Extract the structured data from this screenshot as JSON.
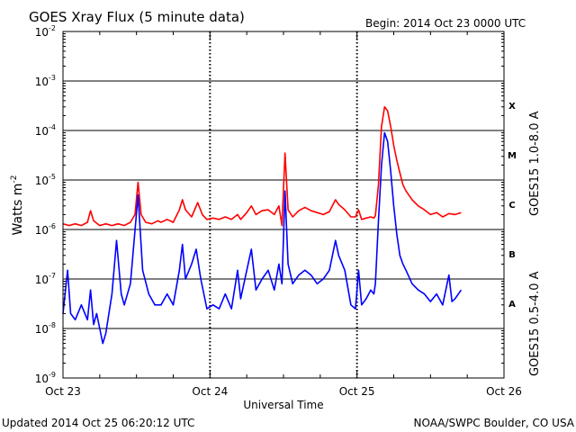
{
  "chart_data": {
    "type": "line",
    "title": "GOES Xray Flux (5 minute data)",
    "begin_label": "Begin:  2014 Oct 23 0000 UTC",
    "ylabel": "Watts m",
    "ylabel_exponent": "-2",
    "xlabel": "Universal Time",
    "yscale": "log",
    "ylim": [
      1e-09,
      0.01
    ],
    "y_ticks": [
      {
        "value": 0.01,
        "base": "10",
        "exp": "-2"
      },
      {
        "value": 0.001,
        "base": "10",
        "exp": "-3"
      },
      {
        "value": 0.0001,
        "base": "10",
        "exp": "-4"
      },
      {
        "value": 1e-05,
        "base": "10",
        "exp": "-5"
      },
      {
        "value": 1e-06,
        "base": "10",
        "exp": "-6"
      },
      {
        "value": 1e-07,
        "base": "10",
        "exp": "-7"
      },
      {
        "value": 1e-08,
        "base": "10",
        "exp": "-8"
      },
      {
        "value": 1e-09,
        "base": "10",
        "exp": "-9"
      }
    ],
    "xlim": [
      "2014-10-23 00:00",
      "2014-10-26 00:00"
    ],
    "x_ticks": [
      {
        "value": "2014-10-23 00:00",
        "label": "Oct 23"
      },
      {
        "value": "2014-10-24 00:00",
        "label": "Oct 24"
      },
      {
        "value": "2014-10-25 00:00",
        "label": "Oct 25"
      },
      {
        "value": "2014-10-26 00:00",
        "label": "Oct 26"
      }
    ],
    "grid": true,
    "flare_classes": [
      {
        "label": "X",
        "value": 0.00032
      },
      {
        "label": "M",
        "value": 3.2e-05
      },
      {
        "label": "C",
        "value": 3.2e-06
      },
      {
        "label": "B",
        "value": 3.2e-07
      },
      {
        "label": "A",
        "value": 3.2e-08
      }
    ],
    "series": [
      {
        "name": "GOES15 1.0-8.0 A",
        "color": "#ff0000",
        "points": [
          [
            "2014-10-23 00:00",
            1.3e-06
          ],
          [
            "2014-10-23 01:00",
            1.2e-06
          ],
          [
            "2014-10-23 02:00",
            1.3e-06
          ],
          [
            "2014-10-23 03:00",
            1.2e-06
          ],
          [
            "2014-10-23 04:00",
            1.4e-06
          ],
          [
            "2014-10-23 04:30",
            2.4e-06
          ],
          [
            "2014-10-23 05:00",
            1.5e-06
          ],
          [
            "2014-10-23 06:00",
            1.2e-06
          ],
          [
            "2014-10-23 07:00",
            1.3e-06
          ],
          [
            "2014-10-23 08:00",
            1.2e-06
          ],
          [
            "2014-10-23 09:00",
            1.3e-06
          ],
          [
            "2014-10-23 10:00",
            1.2e-06
          ],
          [
            "2014-10-23 11:00",
            1.4e-06
          ],
          [
            "2014-10-23 11:45",
            2e-06
          ],
          [
            "2014-10-23 12:15",
            9e-06
          ],
          [
            "2014-10-23 12:45",
            2e-06
          ],
          [
            "2014-10-23 13:30",
            1.4e-06
          ],
          [
            "2014-10-23 14:30",
            1.3e-06
          ],
          [
            "2014-10-23 15:30",
            1.5e-06
          ],
          [
            "2014-10-23 16:00",
            1.4e-06
          ],
          [
            "2014-10-23 17:00",
            1.6e-06
          ],
          [
            "2014-10-23 18:00",
            1.4e-06
          ],
          [
            "2014-10-23 19:00",
            2.5e-06
          ],
          [
            "2014-10-23 19:30",
            4e-06
          ],
          [
            "2014-10-23 20:00",
            2.5e-06
          ],
          [
            "2014-10-23 21:00",
            1.8e-06
          ],
          [
            "2014-10-23 22:00",
            3.5e-06
          ],
          [
            "2014-10-23 22:45",
            2e-06
          ],
          [
            "2014-10-23 23:30",
            1.6e-06
          ],
          [
            "2014-10-24 00:30",
            1.7e-06
          ],
          [
            "2014-10-24 01:30",
            1.6e-06
          ],
          [
            "2014-10-24 02:30",
            1.8e-06
          ],
          [
            "2014-10-24 03:30",
            1.6e-06
          ],
          [
            "2014-10-24 04:30",
            2e-06
          ],
          [
            "2014-10-24 05:00",
            1.6e-06
          ],
          [
            "2014-10-24 06:00",
            2.2e-06
          ],
          [
            "2014-10-24 06:45",
            3e-06
          ],
          [
            "2014-10-24 07:30",
            2e-06
          ],
          [
            "2014-10-24 08:30",
            2.4e-06
          ],
          [
            "2014-10-24 09:30",
            2.5e-06
          ],
          [
            "2014-10-24 10:30",
            2e-06
          ],
          [
            "2014-10-24 11:15",
            3e-06
          ],
          [
            "2014-10-24 11:45",
            1.2e-06
          ],
          [
            "2014-10-24 12:15",
            3.5e-05
          ],
          [
            "2014-10-24 12:45",
            2.5e-06
          ],
          [
            "2014-10-24 13:30",
            1.8e-06
          ],
          [
            "2014-10-24 14:30",
            2.4e-06
          ],
          [
            "2014-10-24 15:30",
            2.8e-06
          ],
          [
            "2014-10-24 16:30",
            2.4e-06
          ],
          [
            "2014-10-24 17:30",
            2.2e-06
          ],
          [
            "2014-10-24 18:30",
            2e-06
          ],
          [
            "2014-10-24 19:30",
            2.3e-06
          ],
          [
            "2014-10-24 20:30",
            4e-06
          ],
          [
            "2014-10-24 21:00",
            3.2e-06
          ],
          [
            "2014-10-24 22:00",
            2.5e-06
          ],
          [
            "2014-10-24 23:00",
            1.8e-06
          ],
          [
            "2014-10-24 23:45",
            1.8e-06
          ],
          [
            "2014-10-25 00:15",
            2.5e-06
          ],
          [
            "2014-10-25 00:45",
            1.6e-06
          ],
          [
            "2014-10-25 01:30",
            1.7e-06
          ],
          [
            "2014-10-25 02:15",
            1.8e-06
          ],
          [
            "2014-10-25 02:45",
            1.7e-06
          ],
          [
            "2014-10-25 03:00",
            1.9e-06
          ],
          [
            "2014-10-25 03:30",
            8e-06
          ],
          [
            "2014-10-25 04:00",
            0.00012
          ],
          [
            "2014-10-25 04:30",
            0.0003
          ],
          [
            "2014-10-25 05:00",
            0.00025
          ],
          [
            "2014-10-25 05:30",
            0.00012
          ],
          [
            "2014-10-25 06:00",
            5e-05
          ],
          [
            "2014-10-25 06:30",
            2.5e-05
          ],
          [
            "2014-10-25 07:00",
            1.4e-05
          ],
          [
            "2014-10-25 07:30",
            8e-06
          ],
          [
            "2014-10-25 08:00",
            6e-06
          ],
          [
            "2014-10-25 09:00",
            4e-06
          ],
          [
            "2014-10-25 10:00",
            3e-06
          ],
          [
            "2014-10-25 11:00",
            2.5e-06
          ],
          [
            "2014-10-25 12:00",
            2e-06
          ],
          [
            "2014-10-25 13:00",
            2.2e-06
          ],
          [
            "2014-10-25 14:00",
            1.8e-06
          ],
          [
            "2014-10-25 15:00",
            2.1e-06
          ],
          [
            "2014-10-25 16:00",
            2e-06
          ],
          [
            "2014-10-25 17:00",
            2.2e-06
          ]
        ]
      },
      {
        "name": "GOES15 0.5-4.0 A",
        "color": "#0000ff",
        "points": [
          [
            "2014-10-23 00:00",
            2e-08
          ],
          [
            "2014-10-23 00:45",
            1.5e-07
          ],
          [
            "2014-10-23 01:15",
            2e-08
          ],
          [
            "2014-10-23 02:00",
            1.5e-08
          ],
          [
            "2014-10-23 03:00",
            3e-08
          ],
          [
            "2014-10-23 04:00",
            1.5e-08
          ],
          [
            "2014-10-23 04:30",
            6e-08
          ],
          [
            "2014-10-23 05:00",
            1.2e-08
          ],
          [
            "2014-10-23 05:30",
            2e-08
          ],
          [
            "2014-10-23 06:00",
            1e-08
          ],
          [
            "2014-10-23 06:30",
            5e-09
          ],
          [
            "2014-10-23 07:00",
            8e-09
          ],
          [
            "2014-10-23 07:30",
            2e-08
          ],
          [
            "2014-10-23 08:00",
            5e-08
          ],
          [
            "2014-10-23 08:45",
            6e-07
          ],
          [
            "2014-10-23 09:30",
            5e-08
          ],
          [
            "2014-10-23 10:00",
            3e-08
          ],
          [
            "2014-10-23 11:00",
            8e-08
          ],
          [
            "2014-10-23 12:15",
            5e-06
          ],
          [
            "2014-10-23 13:00",
            1.5e-07
          ],
          [
            "2014-10-23 14:00",
            5e-08
          ],
          [
            "2014-10-23 15:00",
            3e-08
          ],
          [
            "2014-10-23 16:00",
            3e-08
          ],
          [
            "2014-10-23 17:00",
            5e-08
          ],
          [
            "2014-10-23 18:00",
            3e-08
          ],
          [
            "2014-10-23 19:00",
            1.5e-07
          ],
          [
            "2014-10-23 19:30",
            5e-07
          ],
          [
            "2014-10-23 20:00",
            1e-07
          ],
          [
            "2014-10-23 21:00",
            2e-07
          ],
          [
            "2014-10-23 21:45",
            4e-07
          ],
          [
            "2014-10-23 22:30",
            1e-07
          ],
          [
            "2014-10-23 23:30",
            2.5e-08
          ],
          [
            "2014-10-24 00:30",
            3e-08
          ],
          [
            "2014-10-24 01:30",
            2.5e-08
          ],
          [
            "2014-10-24 02:30",
            5e-08
          ],
          [
            "2014-10-24 03:30",
            2.5e-08
          ],
          [
            "2014-10-24 04:30",
            1.5e-07
          ],
          [
            "2014-10-24 05:00",
            4e-08
          ],
          [
            "2014-10-24 06:00",
            1.5e-07
          ],
          [
            "2014-10-24 06:45",
            4e-07
          ],
          [
            "2014-10-24 07:30",
            6e-08
          ],
          [
            "2014-10-24 08:30",
            1e-07
          ],
          [
            "2014-10-24 09:30",
            1.5e-07
          ],
          [
            "2014-10-24 10:30",
            6e-08
          ],
          [
            "2014-10-24 11:15",
            2e-07
          ],
          [
            "2014-10-24 11:45",
            8e-08
          ],
          [
            "2014-10-24 12:15",
            6e-06
          ],
          [
            "2014-10-24 12:45",
            2e-07
          ],
          [
            "2014-10-24 13:30",
            8e-08
          ],
          [
            "2014-10-24 14:30",
            1.2e-07
          ],
          [
            "2014-10-24 15:30",
            1.5e-07
          ],
          [
            "2014-10-24 16:30",
            1.2e-07
          ],
          [
            "2014-10-24 17:30",
            8e-08
          ],
          [
            "2014-10-24 18:30",
            1e-07
          ],
          [
            "2014-10-24 19:30",
            1.5e-07
          ],
          [
            "2014-10-24 20:30",
            6e-07
          ],
          [
            "2014-10-24 21:00",
            3e-07
          ],
          [
            "2014-10-24 22:00",
            1.5e-07
          ],
          [
            "2014-10-24 23:00",
            3e-08
          ],
          [
            "2014-10-24 23:45",
            2.5e-08
          ],
          [
            "2014-10-25 00:15",
            1.5e-07
          ],
          [
            "2014-10-25 00:45",
            3e-08
          ],
          [
            "2014-10-25 01:30",
            4e-08
          ],
          [
            "2014-10-25 02:15",
            6e-08
          ],
          [
            "2014-10-25 02:45",
            5e-08
          ],
          [
            "2014-10-25 03:00",
            8e-08
          ],
          [
            "2014-10-25 03:30",
            1.5e-06
          ],
          [
            "2014-10-25 04:00",
            2e-05
          ],
          [
            "2014-10-25 04:30",
            9e-05
          ],
          [
            "2014-10-25 05:00",
            6e-05
          ],
          [
            "2014-10-25 05:30",
            1.5e-05
          ],
          [
            "2014-10-25 06:00",
            3e-06
          ],
          [
            "2014-10-25 06:30",
            8e-07
          ],
          [
            "2014-10-25 07:00",
            3e-07
          ],
          [
            "2014-10-25 07:30",
            2e-07
          ],
          [
            "2014-10-25 08:00",
            1.5e-07
          ],
          [
            "2014-10-25 09:00",
            8e-08
          ],
          [
            "2014-10-25 10:00",
            6e-08
          ],
          [
            "2014-10-25 11:00",
            5e-08
          ],
          [
            "2014-10-25 12:00",
            3.5e-08
          ],
          [
            "2014-10-25 13:00",
            5e-08
          ],
          [
            "2014-10-25 14:00",
            3e-08
          ],
          [
            "2014-10-25 15:00",
            1.2e-07
          ],
          [
            "2014-10-25 15:30",
            3.5e-08
          ],
          [
            "2014-10-25 16:00",
            4e-08
          ],
          [
            "2014-10-25 17:00",
            6e-08
          ]
        ]
      }
    ]
  },
  "footer": {
    "updated": "Updated 2014 Oct 25 06:20:12 UTC",
    "source": "NOAA/SWPC Boulder, CO USA"
  }
}
